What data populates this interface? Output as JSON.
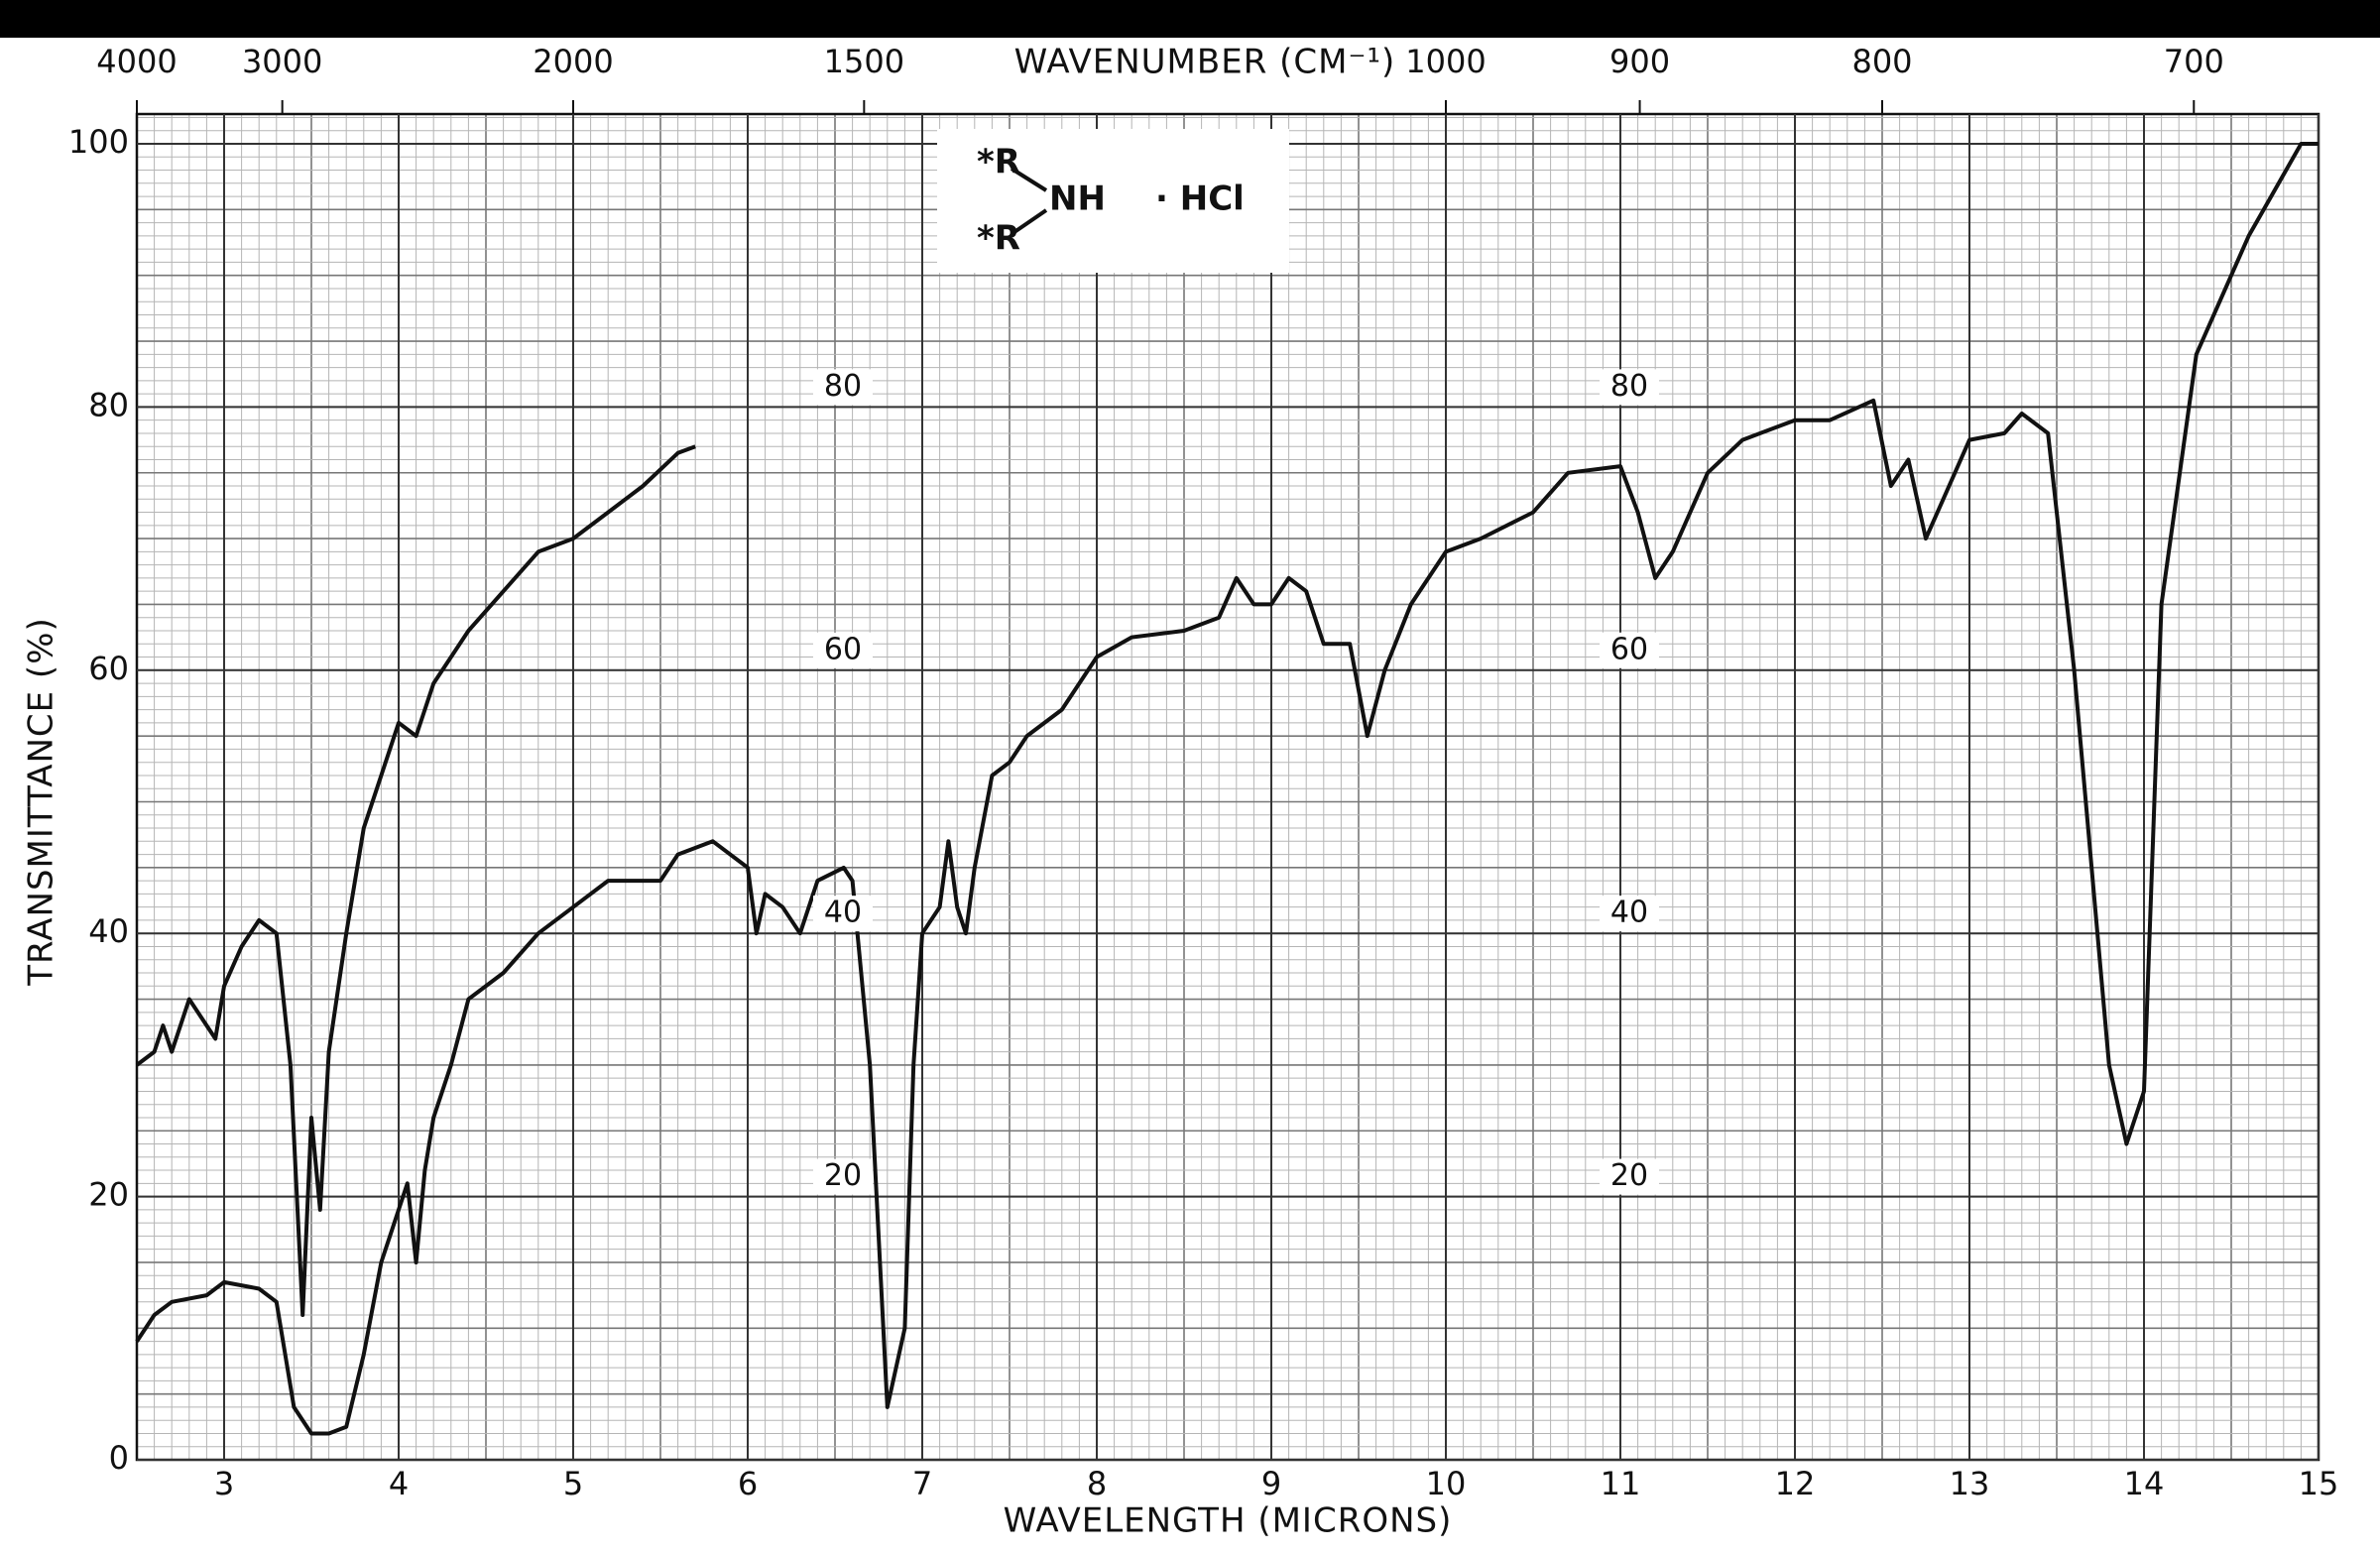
{
  "chart_data": {
    "type": "line",
    "xlabel": "WAVELENGTH (MICRONS)",
    "ylabel": "TRANSMITTANCE (%)",
    "x2label": "WAVENUMBER (CM⁻¹)",
    "xlim": [
      2.5,
      15
    ],
    "xticks": [
      3,
      4,
      5,
      6,
      7,
      8,
      9,
      10,
      11,
      12,
      13,
      14,
      15
    ],
    "ylim": [
      0,
      100
    ],
    "yticks": [
      0,
      20,
      40,
      60,
      80,
      100
    ],
    "x2ticks": [
      4000,
      3000,
      2000,
      1500,
      1000,
      900,
      800,
      700
    ],
    "inner_labels": [
      80,
      60,
      40,
      20
    ],
    "grid": true,
    "structure": {
      "r": [
        "*R",
        "*R"
      ],
      "center": "NH",
      "salt": "· HCl"
    },
    "series": [
      {
        "color": "#111111",
        "x": [
          2.5,
          2.6,
          2.65,
          2.7,
          2.8,
          2.9,
          2.95,
          3.0,
          3.1,
          3.2,
          3.3,
          3.38,
          3.45,
          3.5,
          3.55,
          3.6,
          3.7,
          3.8,
          3.9,
          4.0,
          4.1,
          4.2,
          4.4,
          4.6,
          4.8,
          5.0,
          5.2,
          5.4,
          5.6,
          5.7
        ],
        "values": [
          30,
          31,
          33,
          31,
          35,
          33,
          32,
          36,
          39,
          41,
          40,
          30,
          11,
          26,
          19,
          31,
          40,
          48,
          52,
          56,
          55,
          59,
          63,
          66,
          69,
          70,
          72,
          74,
          76.5,
          77
        ]
      },
      {
        "color": "#111111",
        "x": [
          2.5,
          2.6,
          2.7,
          2.9,
          3.0,
          3.2,
          3.3,
          3.35,
          3.4,
          3.5,
          3.6,
          3.7,
          3.8,
          3.9,
          4.0,
          4.05,
          4.1,
          4.15,
          4.2,
          4.3,
          4.4,
          4.6,
          4.8,
          5.0,
          5.2,
          5.5,
          5.6,
          5.8,
          6.0,
          6.05,
          6.1,
          6.2,
          6.3,
          6.4,
          6.55,
          6.6,
          6.7,
          6.8,
          6.9,
          6.95,
          7.0,
          7.1,
          7.15,
          7.2,
          7.25,
          7.3,
          7.4,
          7.5,
          7.6,
          7.8,
          8.0,
          8.2,
          8.5,
          8.7,
          8.8,
          8.9,
          9.0,
          9.1,
          9.2,
          9.3,
          9.45,
          9.55,
          9.65,
          9.8,
          10.0,
          10.2,
          10.5,
          10.7,
          11.0,
          11.1,
          11.2,
          11.3,
          11.5,
          11.7,
          12.0,
          12.2,
          12.45,
          12.55,
          12.65,
          12.75,
          12.85,
          13.0,
          13.2,
          13.3,
          13.45,
          13.6,
          13.8,
          13.9,
          14.0,
          14.1,
          14.3,
          14.6,
          14.9,
          15.0
        ],
        "values": [
          9,
          11,
          12,
          12.5,
          13.5,
          13,
          12,
          8,
          4,
          2,
          2,
          2.5,
          8,
          15,
          19,
          21,
          15,
          22,
          26,
          30,
          35,
          37,
          40,
          42,
          44,
          44,
          46,
          47,
          45,
          40,
          43,
          42,
          40,
          44,
          45,
          44,
          30,
          4,
          10,
          30,
          40,
          42,
          47,
          42,
          40,
          45,
          52,
          53,
          55,
          57,
          61,
          62.5,
          63,
          64,
          67,
          65,
          65,
          67,
          66,
          62,
          62,
          55,
          60,
          65,
          69,
          70,
          72,
          75,
          75.5,
          72,
          67,
          69,
          75,
          77.5,
          79,
          79,
          80.5,
          74,
          76,
          70,
          73,
          77.5,
          78,
          79.5,
          78,
          60,
          30,
          24,
          28,
          65,
          84,
          93,
          100,
          100
        ]
      }
    ]
  }
}
